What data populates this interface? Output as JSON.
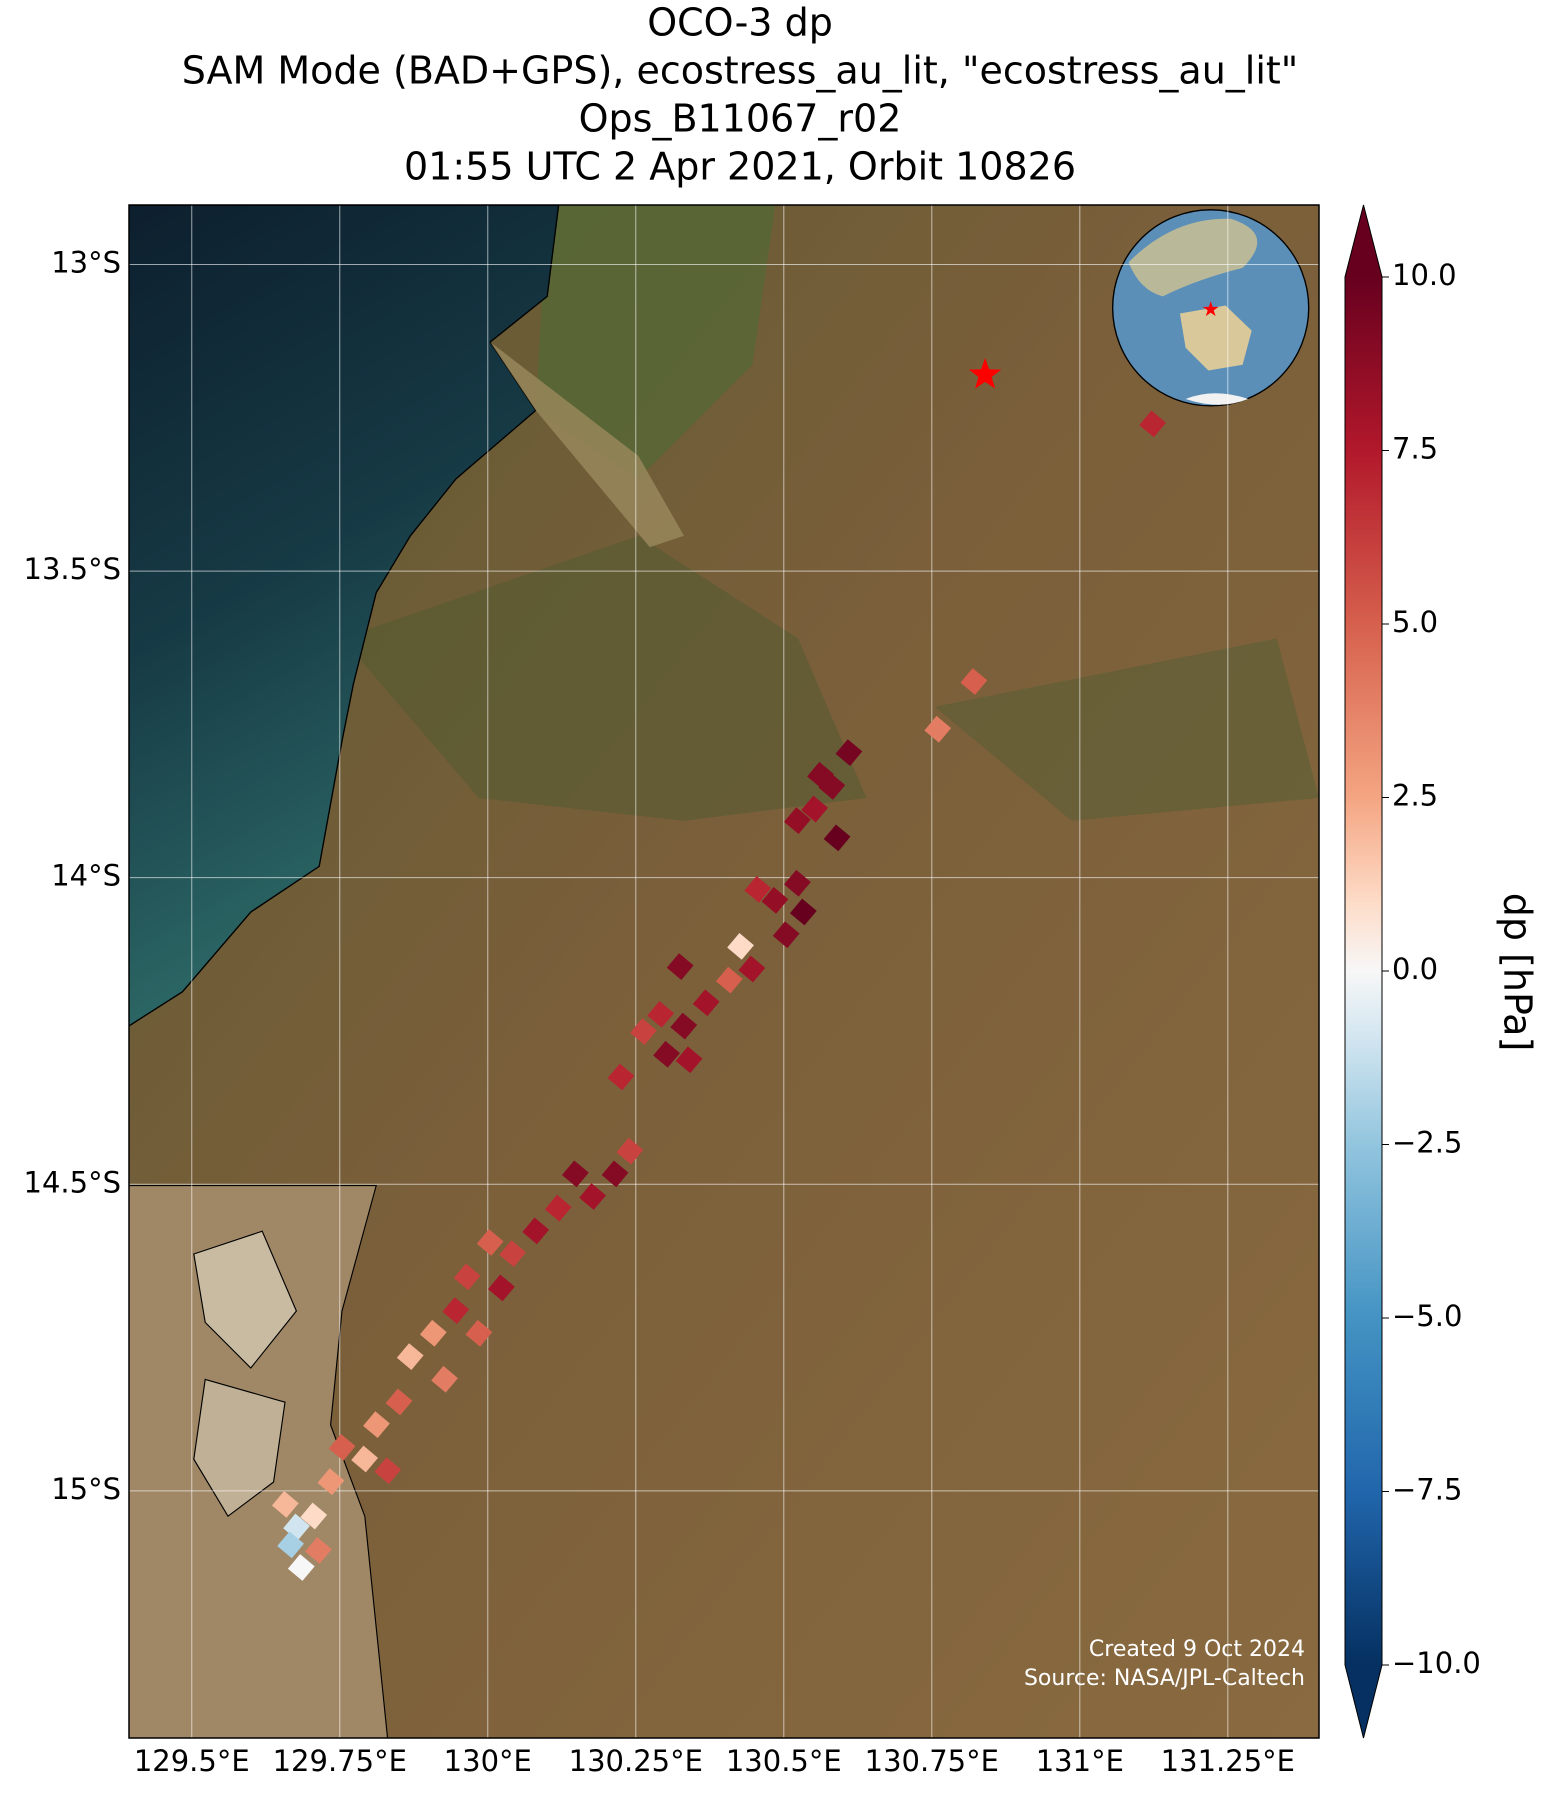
{
  "chart_data": {
    "type": "map",
    "title": [
      "OCO-3 dp",
      "SAM Mode (BAD+GPS), ecostress_au_lit, \"ecostress_au_lit\"",
      "Ops_B11067_r02",
      "01:55 UTC 2 Apr 2021, Orbit 10826"
    ],
    "xlim": [
      129.394,
      131.404
    ],
    "ylim": [
      -15.403,
      -12.903
    ],
    "xticks": [
      {
        "value": 129.5,
        "label": "129.5°E"
      },
      {
        "value": 129.75,
        "label": "129.75°E"
      },
      {
        "value": 130,
        "label": "130°E"
      },
      {
        "value": 130.25,
        "label": "130.25°E"
      },
      {
        "value": 130.5,
        "label": "130.5°E"
      },
      {
        "value": 130.75,
        "label": "130.75°E"
      },
      {
        "value": 131,
        "label": "131°E"
      },
      {
        "value": 131.25,
        "label": "131.25°E"
      }
    ],
    "yticks": [
      {
        "value": -13,
        "label": "13°S"
      },
      {
        "value": -13.5,
        "label": "13.5°S"
      },
      {
        "value": -14,
        "label": "14°S"
      },
      {
        "value": -14.5,
        "label": "14.5°S"
      },
      {
        "value": -15,
        "label": "15°S"
      }
    ],
    "grid": true,
    "colormap": "RdBu_r",
    "colorbar": {
      "label": "dp [hPa]",
      "clim": [
        -10,
        10
      ],
      "ticks": [
        {
          "value": 10,
          "label": "10.0"
        },
        7.5,
        {
          "value": 5,
          "label": "5.0"
        },
        2.5,
        {
          "value": 0,
          "label": "0.0"
        },
        {
          "value": -2.5,
          "label": "−2.5"
        },
        {
          "value": -5,
          "label": "−5.0"
        },
        {
          "value": -7.5,
          "label": "−7.5"
        },
        {
          "value": -10,
          "label": "−10.0"
        }
      ]
    },
    "points": {
      "lon": [
        131.123,
        130.821,
        130.76,
        130.61,
        130.581,
        130.552,
        130.59,
        130.523,
        130.562,
        130.523,
        130.485,
        130.456,
        130.533,
        130.504,
        130.427,
        130.408,
        130.446,
        130.325,
        130.369,
        130.331,
        130.292,
        130.263,
        130.34,
        130.302,
        130.225,
        130.24,
        130.215,
        130.177,
        130.148,
        130.119,
        130.081,
        130.042,
        130.004,
        130.023,
        129.965,
        129.946,
        129.985,
        129.908,
        129.869,
        129.927,
        129.85,
        129.812,
        129.792,
        129.754,
        129.831,
        129.735,
        129.706,
        129.677,
        129.658,
        129.714,
        129.685,
        129.667
      ],
      "lat": [
        -13.26,
        -13.68,
        -13.758,
        -13.796,
        -13.851,
        -13.888,
        -13.935,
        -13.907,
        -13.833,
        -14.009,
        -14.037,
        -14.019,
        -14.056,
        -14.093,
        -14.112,
        -14.167,
        -14.149,
        -14.145,
        -14.204,
        -14.242,
        -14.223,
        -14.251,
        -14.297,
        -14.288,
        -14.325,
        -14.446,
        -14.483,
        -14.52,
        -14.483,
        -14.539,
        -14.576,
        -14.613,
        -14.595,
        -14.669,
        -14.651,
        -14.706,
        -14.743,
        -14.743,
        -14.781,
        -14.818,
        -14.855,
        -14.892,
        -14.948,
        -14.929,
        -14.967,
        -14.985,
        -15.041,
        -15.059,
        -15.022,
        -15.097,
        -15.125,
        -15.088
      ],
      "values": [
        7,
        5,
        4,
        9.5,
        9,
        8,
        10,
        8.5,
        9,
        9,
        8.5,
        7,
        10,
        9,
        1,
        5,
        8,
        9,
        8,
        9,
        7,
        6,
        8,
        9,
        7,
        6,
        9,
        8,
        9,
        7,
        8,
        6,
        5,
        8,
        6,
        7,
        5,
        3,
        2,
        4,
        5,
        3,
        2,
        5,
        6,
        3,
        1,
        -1,
        2,
        4,
        0,
        -2
      ]
    },
    "site": {
      "lon": 130.84,
      "lat": -13.18
    },
    "credits": [
      "Created 9 Oct 2024",
      "Source: NASA/JPL-Caltech"
    ]
  }
}
